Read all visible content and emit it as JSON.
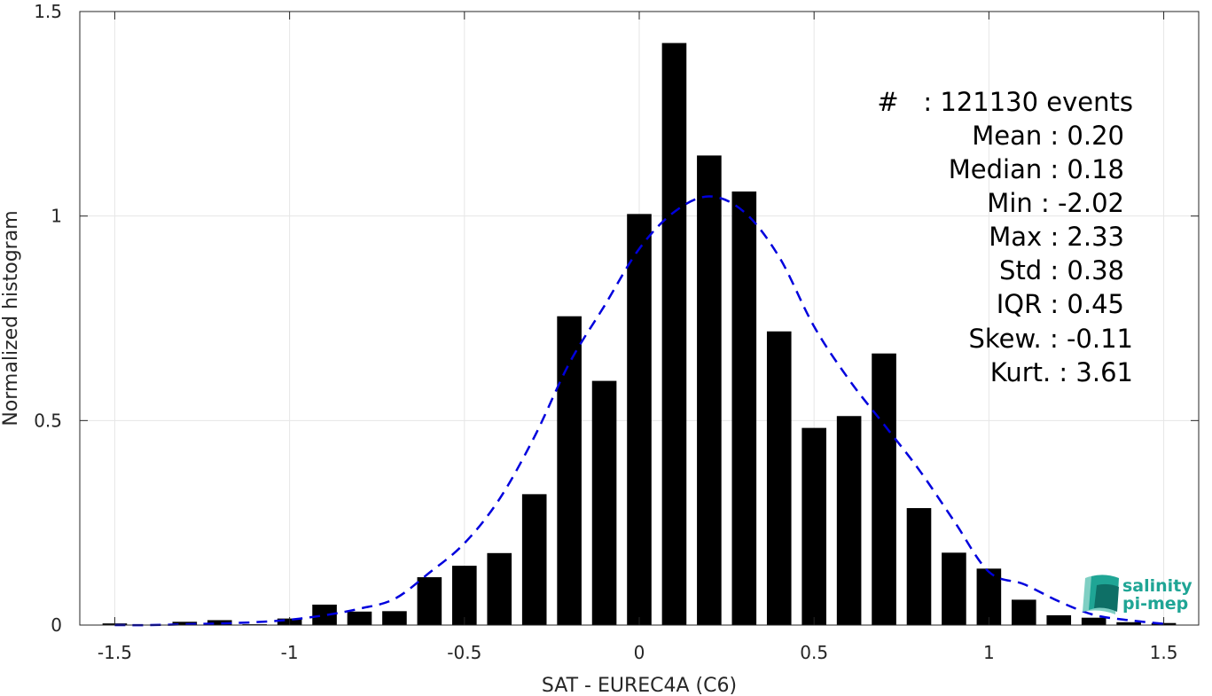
{
  "chart_data": {
    "type": "bar",
    "xlabel": "SAT - EUREC4A (C6)",
    "ylabel": "Normalized histogram",
    "xlim": [
      -1.6,
      1.6
    ],
    "ylim": [
      0,
      1.5
    ],
    "xticks": [
      -1.5,
      -1,
      -0.5,
      0,
      0.5,
      1,
      1.5
    ],
    "xtick_labels": [
      "-1.5",
      "-1",
      "-0.5",
      "0",
      "0.5",
      "1",
      "1.5"
    ],
    "yticks": [
      0,
      0.5,
      1,
      1.5
    ],
    "ytick_labels": [
      "0",
      "0.5",
      "1",
      "1.5"
    ],
    "grid": true,
    "bin_width": 0.1,
    "bar_width_fraction": 0.7,
    "bar_color": "#000000",
    "series": [
      {
        "type": "bar",
        "x": [
          -1.5,
          -1.4,
          -1.3,
          -1.2,
          -1.1,
          -1.0,
          -0.9,
          -0.8,
          -0.7,
          -0.6,
          -0.5,
          -0.4,
          -0.3,
          -0.2,
          -0.1,
          0.0,
          0.1,
          0.2,
          0.3,
          0.4,
          0.5,
          0.6,
          0.7,
          0.8,
          0.9,
          1.0,
          1.1,
          1.2,
          1.3,
          1.4,
          1.5
        ],
        "values": [
          0.004,
          0.001,
          0.008,
          0.012,
          0.002,
          0.016,
          0.05,
          0.033,
          0.034,
          0.117,
          0.145,
          0.176,
          0.32,
          0.755,
          0.597,
          1.005,
          1.423,
          1.148,
          1.06,
          0.718,
          0.482,
          0.511,
          0.664,
          0.286,
          0.177,
          0.138,
          0.062,
          0.024,
          0.018,
          0.007,
          0.005
        ]
      },
      {
        "type": "line",
        "style": "dashed",
        "color": "#0000dd",
        "x": [
          -1.5,
          -1.4,
          -1.3,
          -1.2,
          -1.1,
          -1.0,
          -0.9,
          -0.8,
          -0.7,
          -0.6,
          -0.5,
          -0.4,
          -0.3,
          -0.2,
          -0.1,
          0.0,
          0.1,
          0.2,
          0.3,
          0.4,
          0.5,
          0.6,
          0.7,
          0.8,
          0.9,
          1.0,
          1.1,
          1.2,
          1.3,
          1.4,
          1.5
        ],
        "values": [
          0.0,
          0.0,
          0.002,
          0.004,
          0.007,
          0.013,
          0.024,
          0.04,
          0.064,
          0.128,
          0.2,
          0.308,
          0.46,
          0.64,
          0.78,
          0.92,
          1.01,
          1.048,
          1.01,
          0.9,
          0.73,
          0.6,
          0.49,
          0.38,
          0.255,
          0.13,
          0.1,
          0.058,
          0.025,
          0.012,
          0.003
        ]
      }
    ]
  },
  "stats": {
    "line1": "#   : 121130 events",
    "line2": "Mean : 0.20",
    "line3": "Median : 0.18",
    "line4": "Min : -2.02",
    "line5": "Max : 2.33",
    "line6": "Std : 0.38",
    "line7": "IQR : 0.45",
    "line8": "Skew. : -0.11",
    "line9": "Kurt. : 3.61"
  },
  "logo": {
    "line1": "salinity",
    "line2": "pi-mep",
    "color": "#1fa595"
  }
}
